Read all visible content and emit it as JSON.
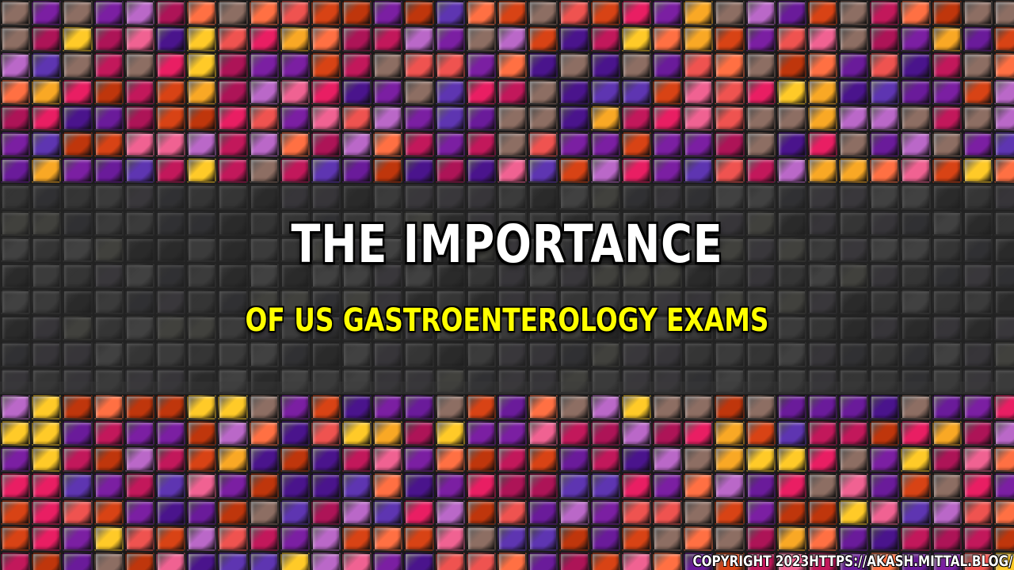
{
  "background": {
    "description_colors": [
      "#c2185b",
      "#7b1fa2",
      "#d84315",
      "#f9a825",
      "#ad1457",
      "#e91e63",
      "#5e35b1",
      "#8d6e63",
      "#ef5350",
      "#ba68c8",
      "#ff7043",
      "#ffca28",
      "#6a1b9a",
      "#f06292",
      "#4a148c",
      "#bf360c"
    ],
    "dim_colors": [
      "#4a4a4a",
      "#5a5a5a",
      "#3e3e44",
      "#6b6b60",
      "#55505a",
      "#2e2e2e",
      "#6a6a6a",
      "#4f4a55"
    ]
  },
  "headline": {
    "title": "THE IMPORTANCE",
    "subtitle": "OF US GASTROENTEROLOGY EXAMS"
  },
  "footer": {
    "copyright": "COPYRIGHT 2023HTTPS://AKASH.MITTAL.BLOG/"
  },
  "colors": {
    "title": "#ffffff",
    "subtitle": "#ffff00"
  }
}
